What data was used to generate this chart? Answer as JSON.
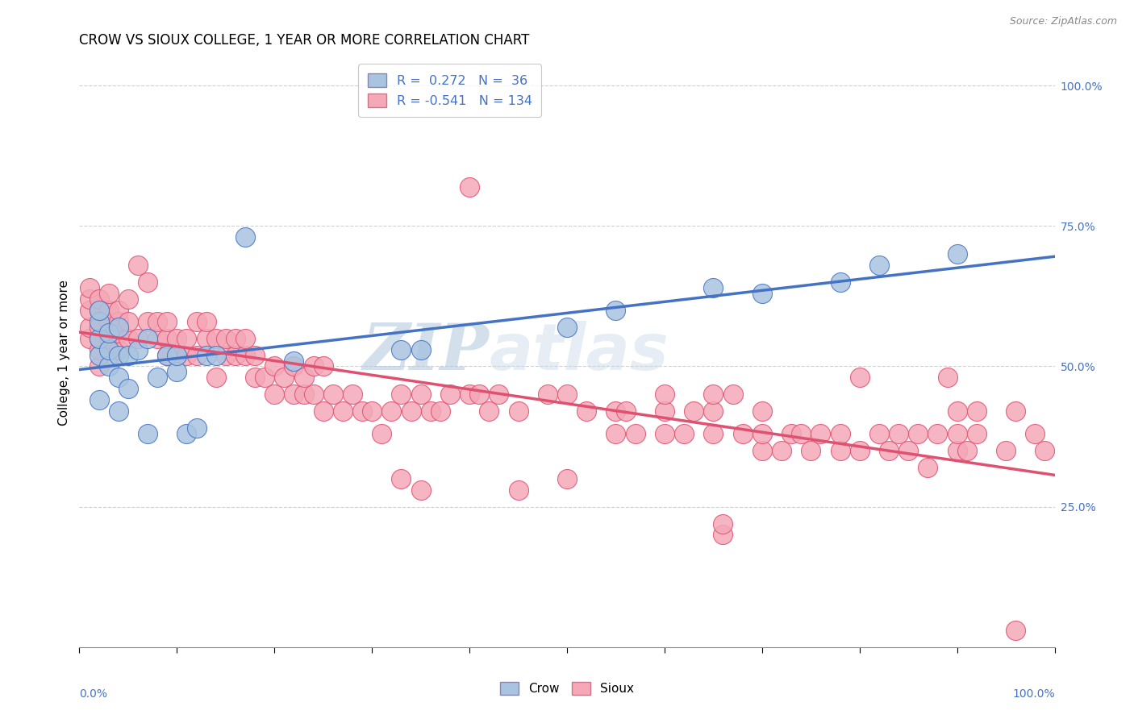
{
  "title": "CROW VS SIOUX COLLEGE, 1 YEAR OR MORE CORRELATION CHART",
  "source": "Source: ZipAtlas.com",
  "ylabel": "College, 1 year or more",
  "right_yticks": [
    "100.0%",
    "75.0%",
    "50.0%",
    "25.0%"
  ],
  "right_ytick_vals": [
    1.0,
    0.75,
    0.5,
    0.25
  ],
  "crow_R": 0.272,
  "crow_N": 36,
  "sioux_R": -0.541,
  "sioux_N": 134,
  "crow_color": "#a8c4e0",
  "sioux_color": "#f4a8b8",
  "crow_line_color": "#4472c4",
  "sioux_line_color": "#e05070",
  "legend_text_color": "#4472c4",
  "watermark_text": "ZIP",
  "watermark_text2": "atlas",
  "crow_points": [
    [
      0.02,
      0.44
    ],
    [
      0.02,
      0.52
    ],
    [
      0.02,
      0.55
    ],
    [
      0.02,
      0.58
    ],
    [
      0.02,
      0.6
    ],
    [
      0.03,
      0.5
    ],
    [
      0.03,
      0.53
    ],
    [
      0.03,
      0.56
    ],
    [
      0.04,
      0.42
    ],
    [
      0.04,
      0.48
    ],
    [
      0.04,
      0.52
    ],
    [
      0.04,
      0.57
    ],
    [
      0.05,
      0.46
    ],
    [
      0.05,
      0.52
    ],
    [
      0.06,
      0.53
    ],
    [
      0.07,
      0.38
    ],
    [
      0.07,
      0.55
    ],
    [
      0.08,
      0.48
    ],
    [
      0.09,
      0.52
    ],
    [
      0.1,
      0.49
    ],
    [
      0.1,
      0.52
    ],
    [
      0.11,
      0.38
    ],
    [
      0.12,
      0.39
    ],
    [
      0.13,
      0.52
    ],
    [
      0.14,
      0.52
    ],
    [
      0.17,
      0.73
    ],
    [
      0.22,
      0.51
    ],
    [
      0.33,
      0.53
    ],
    [
      0.35,
      0.53
    ],
    [
      0.5,
      0.57
    ],
    [
      0.55,
      0.6
    ],
    [
      0.65,
      0.64
    ],
    [
      0.7,
      0.63
    ],
    [
      0.78,
      0.65
    ],
    [
      0.82,
      0.68
    ],
    [
      0.9,
      0.7
    ]
  ],
  "sioux_points": [
    [
      0.01,
      0.55
    ],
    [
      0.01,
      0.57
    ],
    [
      0.01,
      0.6
    ],
    [
      0.01,
      0.62
    ],
    [
      0.01,
      0.64
    ],
    [
      0.02,
      0.5
    ],
    [
      0.02,
      0.53
    ],
    [
      0.02,
      0.55
    ],
    [
      0.02,
      0.57
    ],
    [
      0.02,
      0.6
    ],
    [
      0.02,
      0.62
    ],
    [
      0.03,
      0.55
    ],
    [
      0.03,
      0.58
    ],
    [
      0.03,
      0.6
    ],
    [
      0.03,
      0.63
    ],
    [
      0.04,
      0.53
    ],
    [
      0.04,
      0.56
    ],
    [
      0.04,
      0.58
    ],
    [
      0.04,
      0.6
    ],
    [
      0.05,
      0.55
    ],
    [
      0.05,
      0.58
    ],
    [
      0.05,
      0.62
    ],
    [
      0.06,
      0.55
    ],
    [
      0.06,
      0.68
    ],
    [
      0.07,
      0.58
    ],
    [
      0.07,
      0.65
    ],
    [
      0.08,
      0.55
    ],
    [
      0.08,
      0.58
    ],
    [
      0.09,
      0.52
    ],
    [
      0.09,
      0.55
    ],
    [
      0.09,
      0.58
    ],
    [
      0.1,
      0.52
    ],
    [
      0.1,
      0.55
    ],
    [
      0.11,
      0.52
    ],
    [
      0.11,
      0.55
    ],
    [
      0.12,
      0.52
    ],
    [
      0.12,
      0.58
    ],
    [
      0.13,
      0.55
    ],
    [
      0.13,
      0.58
    ],
    [
      0.14,
      0.48
    ],
    [
      0.14,
      0.55
    ],
    [
      0.15,
      0.52
    ],
    [
      0.15,
      0.55
    ],
    [
      0.16,
      0.52
    ],
    [
      0.16,
      0.55
    ],
    [
      0.17,
      0.52
    ],
    [
      0.17,
      0.55
    ],
    [
      0.18,
      0.48
    ],
    [
      0.18,
      0.52
    ],
    [
      0.19,
      0.48
    ],
    [
      0.2,
      0.45
    ],
    [
      0.2,
      0.5
    ],
    [
      0.21,
      0.48
    ],
    [
      0.22,
      0.45
    ],
    [
      0.22,
      0.5
    ],
    [
      0.23,
      0.45
    ],
    [
      0.23,
      0.48
    ],
    [
      0.24,
      0.45
    ],
    [
      0.24,
      0.5
    ],
    [
      0.25,
      0.42
    ],
    [
      0.25,
      0.5
    ],
    [
      0.26,
      0.45
    ],
    [
      0.27,
      0.42
    ],
    [
      0.28,
      0.45
    ],
    [
      0.29,
      0.42
    ],
    [
      0.3,
      0.42
    ],
    [
      0.31,
      0.38
    ],
    [
      0.32,
      0.42
    ],
    [
      0.33,
      0.3
    ],
    [
      0.33,
      0.45
    ],
    [
      0.34,
      0.42
    ],
    [
      0.35,
      0.28
    ],
    [
      0.35,
      0.45
    ],
    [
      0.36,
      0.42
    ],
    [
      0.37,
      0.42
    ],
    [
      0.38,
      0.45
    ],
    [
      0.4,
      0.45
    ],
    [
      0.4,
      0.82
    ],
    [
      0.41,
      0.45
    ],
    [
      0.42,
      0.42
    ],
    [
      0.43,
      0.45
    ],
    [
      0.45,
      0.28
    ],
    [
      0.45,
      0.42
    ],
    [
      0.48,
      0.45
    ],
    [
      0.5,
      0.3
    ],
    [
      0.5,
      0.45
    ],
    [
      0.52,
      0.42
    ],
    [
      0.55,
      0.38
    ],
    [
      0.55,
      0.42
    ],
    [
      0.56,
      0.42
    ],
    [
      0.57,
      0.38
    ],
    [
      0.6,
      0.38
    ],
    [
      0.6,
      0.42
    ],
    [
      0.6,
      0.45
    ],
    [
      0.62,
      0.38
    ],
    [
      0.63,
      0.42
    ],
    [
      0.65,
      0.38
    ],
    [
      0.65,
      0.42
    ],
    [
      0.65,
      0.45
    ],
    [
      0.66,
      0.2
    ],
    [
      0.66,
      0.22
    ],
    [
      0.67,
      0.45
    ],
    [
      0.68,
      0.38
    ],
    [
      0.7,
      0.35
    ],
    [
      0.7,
      0.38
    ],
    [
      0.7,
      0.42
    ],
    [
      0.72,
      0.35
    ],
    [
      0.73,
      0.38
    ],
    [
      0.74,
      0.38
    ],
    [
      0.75,
      0.35
    ],
    [
      0.76,
      0.38
    ],
    [
      0.78,
      0.35
    ],
    [
      0.78,
      0.38
    ],
    [
      0.8,
      0.35
    ],
    [
      0.8,
      0.48
    ],
    [
      0.82,
      0.38
    ],
    [
      0.83,
      0.35
    ],
    [
      0.84,
      0.38
    ],
    [
      0.85,
      0.35
    ],
    [
      0.86,
      0.38
    ],
    [
      0.87,
      0.32
    ],
    [
      0.88,
      0.38
    ],
    [
      0.89,
      0.48
    ],
    [
      0.9,
      0.35
    ],
    [
      0.9,
      0.38
    ],
    [
      0.9,
      0.42
    ],
    [
      0.91,
      0.35
    ],
    [
      0.92,
      0.38
    ],
    [
      0.92,
      0.42
    ],
    [
      0.95,
      0.35
    ],
    [
      0.96,
      0.03
    ],
    [
      0.96,
      0.42
    ],
    [
      0.98,
      0.38
    ],
    [
      0.99,
      0.35
    ]
  ],
  "xlim": [
    0.0,
    1.0
  ],
  "ylim": [
    0.0,
    1.05
  ],
  "background_color": "#ffffff",
  "grid_color": "#d0d0d0",
  "hgrid_vals": [
    0.25,
    0.5,
    0.75,
    1.0
  ],
  "xtick_vals": [
    0.0,
    0.5,
    1.0
  ],
  "xtick_minor_vals": [
    0.1,
    0.2,
    0.3,
    0.4,
    0.6,
    0.7,
    0.8,
    0.9
  ]
}
